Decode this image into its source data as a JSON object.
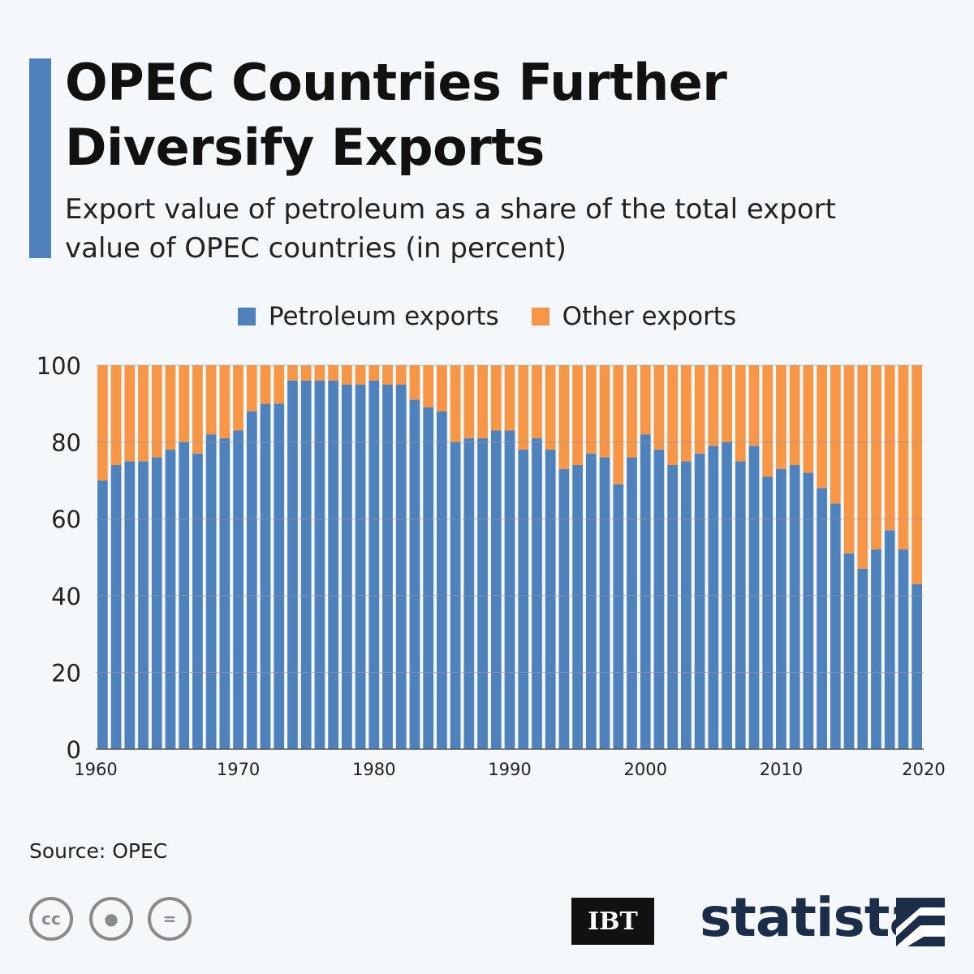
{
  "title_line1": "OPEC Countries Further",
  "title_line2": "Diversify Exports",
  "subtitle_line1": "Export value of petroleum as a share of the total export",
  "subtitle_line2": "value of OPEC countries (in percent)",
  "source": "Source: OPEC",
  "logos": {
    "ibt": "IBT",
    "statista": "statista"
  },
  "icons": [
    "cc-icon",
    "attribution-icon",
    "no-derivatives-icon"
  ],
  "colors": {
    "petroleum": "#4f81bd",
    "other": "#f79646",
    "accent": "#4f81bd"
  },
  "chart_data": {
    "type": "bar",
    "stacked": true,
    "legend_position": "top-center",
    "x": [
      1960,
      1961,
      1962,
      1963,
      1964,
      1965,
      1966,
      1967,
      1968,
      1969,
      1970,
      1971,
      1972,
      1973,
      1974,
      1975,
      1976,
      1977,
      1978,
      1979,
      1980,
      1981,
      1982,
      1983,
      1984,
      1985,
      1986,
      1987,
      1988,
      1989,
      1990,
      1991,
      1992,
      1993,
      1994,
      1995,
      1996,
      1997,
      1998,
      1999,
      2000,
      2001,
      2002,
      2003,
      2004,
      2005,
      2006,
      2007,
      2008,
      2009,
      2010,
      2011,
      2012,
      2013,
      2014,
      2015,
      2016,
      2017,
      2018,
      2019,
      2020
    ],
    "series": [
      {
        "name": "Petroleum exports",
        "values": [
          70,
          74,
          75,
          75,
          76,
          78,
          80,
          77,
          82,
          81,
          83,
          88,
          90,
          90,
          96,
          96,
          96,
          96,
          95,
          95,
          96,
          95,
          95,
          91,
          89,
          88,
          80,
          81,
          81,
          83,
          83,
          78,
          81,
          78,
          73,
          74,
          77,
          76,
          69,
          76,
          82,
          78,
          74,
          75,
          77,
          79,
          80,
          75,
          79,
          71,
          73,
          74,
          72,
          68,
          64,
          51,
          47,
          52,
          57,
          52,
          43
        ]
      },
      {
        "name": "Other exports",
        "values": [
          30,
          26,
          25,
          25,
          24,
          22,
          20,
          23,
          18,
          19,
          17,
          12,
          10,
          10,
          4,
          4,
          4,
          4,
          5,
          5,
          4,
          5,
          5,
          9,
          11,
          12,
          20,
          19,
          19,
          17,
          17,
          22,
          19,
          22,
          27,
          26,
          23,
          24,
          31,
          24,
          18,
          22,
          26,
          25,
          23,
          21,
          20,
          25,
          21,
          29,
          27,
          26,
          28,
          32,
          36,
          49,
          53,
          48,
          43,
          48,
          57
        ]
      }
    ],
    "xticks": [
      "1960",
      "1970",
      "1980",
      "1990",
      "2000",
      "2010",
      "2020"
    ],
    "yticks": [
      "0",
      "20",
      "40",
      "60",
      "80",
      "100"
    ],
    "ylim": [
      0,
      100
    ],
    "grid": true
  }
}
